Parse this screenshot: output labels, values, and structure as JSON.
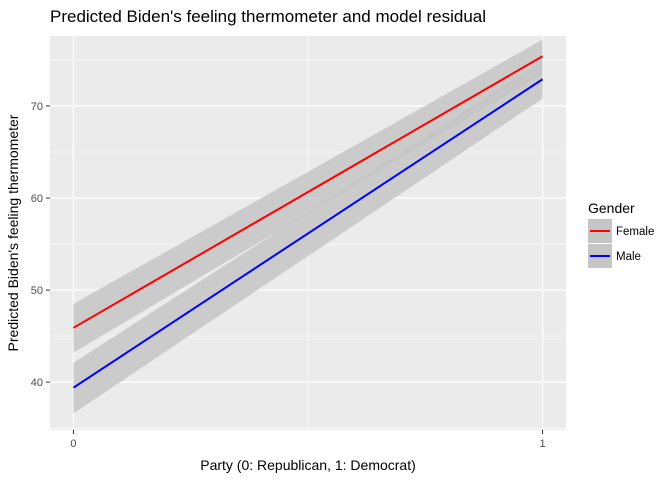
{
  "chart_data": {
    "type": "line",
    "title": "Predicted Biden's feeling thermometer and model residual",
    "xlabel": "Party (0: Republican, 1: Democrat)",
    "ylabel": "Predicted Biden's feeling thermometer",
    "xlim": [
      -0.05,
      1.05
    ],
    "ylim": [
      34.8,
      77.6
    ],
    "x_ticks": [
      0,
      1
    ],
    "y_ticks": [
      40,
      50,
      60,
      70
    ],
    "grid": true,
    "legend": {
      "title": "Gender",
      "position": "right"
    },
    "series": [
      {
        "name": "Female",
        "color": "#ff0000",
        "x": [
          0,
          1
        ],
        "y": [
          45.9,
          75.4
        ],
        "ci_lower": [
          43.2,
          73.5
        ],
        "ci_upper": [
          48.5,
          77.2
        ]
      },
      {
        "name": "Male",
        "color": "#0000ff",
        "x": [
          0,
          1
        ],
        "y": [
          39.4,
          72.9
        ],
        "ci_lower": [
          36.6,
          70.8
        ],
        "ci_upper": [
          42.1,
          74.9
        ]
      }
    ],
    "ribbon_color": "#c6c6c6",
    "panel_background": "#ebebeb"
  }
}
